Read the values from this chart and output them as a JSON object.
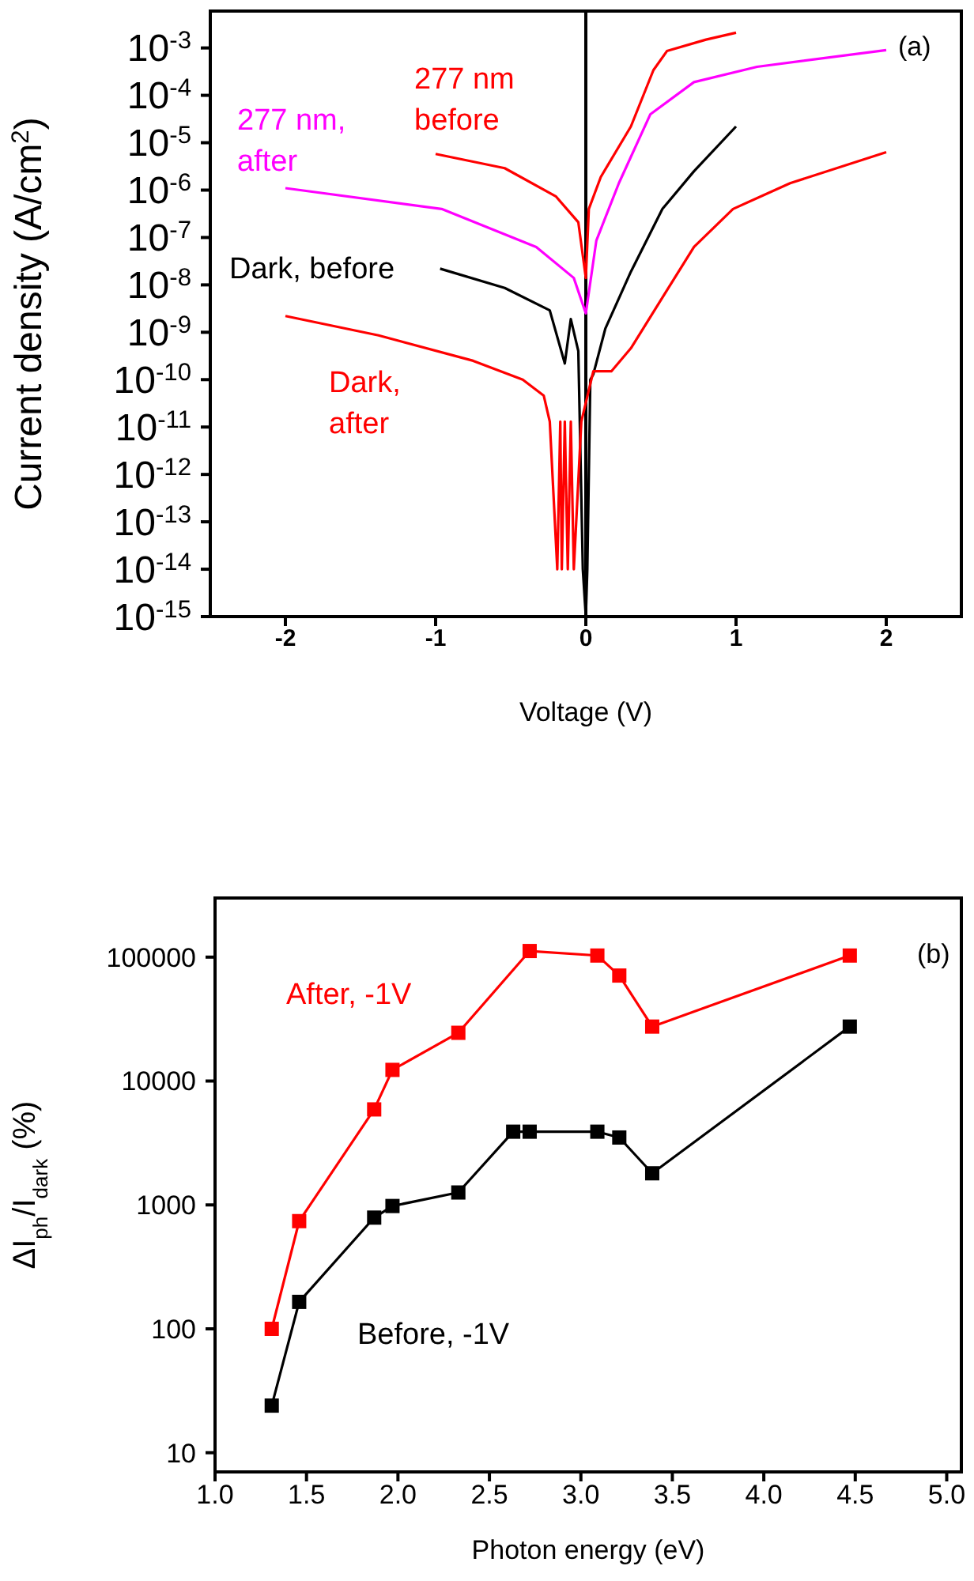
{
  "chart_data": [
    {
      "type": "line",
      "xlabel": "Voltage (V)",
      "ylabel": "Current density (A/cm$^{2}$)",
      "log": "y",
      "marker": "none",
      "line_style": "solid",
      "xlim": [
        -2.5,
        2.5
      ],
      "xticks": [
        -2,
        -1,
        0,
        1,
        2
      ],
      "ylim": [
        1e-15,
        0.006
      ],
      "yticks": [
        {
          "value": 1e-15,
          "label": "10$^{-15}$"
        },
        {
          "value": 1e-14,
          "label": "10$^{-14}$"
        },
        {
          "value": 1e-13,
          "label": "10$^{-13}$"
        },
        {
          "value": 1e-12,
          "label": "10$^{-12}$"
        },
        {
          "value": 1e-11,
          "label": "10$^{-11}$"
        },
        {
          "value": 1e-10,
          "label": "10$^{-10}$"
        },
        {
          "value": 1e-09,
          "label": "10$^{-9}$"
        },
        {
          "value": 1e-08,
          "label": "10$^{-8}$"
        },
        {
          "value": 1e-07,
          "label": "10$^{-7}$"
        },
        {
          "value": 1e-06,
          "label": "10$^{-6}$"
        },
        {
          "value": 1e-05,
          "label": "10$^{-5}$"
        },
        {
          "value": 0.0001,
          "label": "10$^{-4}$"
        },
        {
          "value": 0.001,
          "label": "10$^{-3}$"
        }
      ],
      "ref_lines": [
        {
          "axis": "x",
          "value": 0,
          "color": "#000000"
        }
      ],
      "annotations": [
        "(a)"
      ],
      "series": [
        {
          "name": "277 nm before",
          "color": "#ff0000",
          "x": [
            -1.0,
            -0.54,
            -0.2,
            -0.05,
            0,
            0.02,
            0.1,
            0.3,
            0.45,
            0.54,
            0.8,
            1.0
          ],
          "values": [
            5.8e-06,
            2.9e-06,
            7.4e-07,
            2.1e-07,
            1.4e-08,
            4e-07,
            1.9e-06,
            2.2e-05,
            0.00034,
            0.00086,
            0.0015,
            0.0021
          ]
        },
        {
          "name": "277 nm, after",
          "color": "#ff00ff",
          "x": [
            -2.0,
            -0.96,
            -0.33,
            -0.08,
            0,
            0.07,
            0.22,
            0.43,
            0.72,
            1.14,
            2.0
          ],
          "values": [
            1.1e-06,
            4e-07,
            6.3e-08,
            1.4e-08,
            2.5e-09,
            8.6e-08,
            1.4e-06,
            4e-05,
            0.00019,
            0.0004,
            0.0009
          ]
        },
        {
          "name": "Dark, before",
          "color": "#000000",
          "x": [
            -0.97,
            -0.54,
            -0.24,
            -0.14,
            -0.1,
            -0.05,
            -0.02,
            0,
            0.01,
            0.03,
            0.05,
            0.13,
            0.3,
            0.51,
            0.72,
            1.0
          ],
          "values": [
            2.2e-08,
            8.6e-09,
            2.9e-09,
            2.2e-10,
            1.9e-09,
            4e-10,
            1e-14,
            1e-15,
            1e-14,
            1e-10,
            1.3e-10,
            1.2e-09,
            1.9e-08,
            4e-07,
            2.5e-06,
            2.2e-05
          ]
        },
        {
          "name": "Dark, after",
          "color": "#ff0000",
          "x": [
            -2.0,
            -1.38,
            -0.75,
            -0.42,
            -0.28,
            -0.24,
            -0.19,
            -0.17,
            -0.16,
            -0.14,
            -0.12,
            -0.1,
            -0.08,
            -0.03,
            0.05,
            0.17,
            0.3,
            0.51,
            0.72,
            0.98,
            1.36,
            2.0
          ],
          "values": [
            2.2e-09,
            8.6e-10,
            2.5e-10,
            1e-10,
            4.6e-11,
            1.3e-11,
            1e-14,
            1.3e-11,
            1e-14,
            1.3e-11,
            1e-14,
            1.3e-11,
            1e-14,
            1.3e-11,
            1.5e-10,
            1.5e-10,
            4.6e-10,
            5.4e-09,
            6.3e-08,
            4e-07,
            1.4e-06,
            6.3e-06
          ]
        }
      ]
    },
    {
      "type": "line",
      "xlabel": "Photon energy (eV)",
      "ylabel": "ΔI$_{ph}$/I$_{dark}$ (%)",
      "log": "y",
      "marker": "square",
      "line_style": "solid",
      "xlim": [
        1.0,
        5.08
      ],
      "xticks": [
        {
          "value": 1,
          "label": "1.0"
        },
        1.5,
        {
          "value": 2,
          "label": "2.0"
        },
        2.5,
        {
          "value": 3,
          "label": "3.0"
        },
        3.5,
        {
          "value": 4,
          "label": "4.0"
        },
        4.5,
        {
          "value": 5,
          "label": "5.0"
        }
      ],
      "ylim": [
        7,
        300000
      ],
      "yticks": [
        10,
        100,
        1000,
        10000,
        100000
      ],
      "annotations": [
        "(b)"
      ],
      "series": [
        {
          "name": "After, -1V",
          "color": "#ff0000",
          "x": [
            1.31,
            1.46,
            1.87,
            1.97,
            2.33,
            2.72,
            3.09,
            3.21,
            3.39,
            4.47
          ],
          "values": [
            100,
            740,
            5900,
            12300,
            24500,
            112000,
            103000,
            71000,
            27500,
            103000
          ]
        },
        {
          "name": "Before, -1V",
          "color": "#000000",
          "x": [
            1.31,
            1.46,
            1.87,
            1.97,
            2.33,
            2.63,
            2.72,
            3.09,
            3.21,
            3.39,
            4.47
          ],
          "values": [
            24,
            165,
            790,
            980,
            1260,
            3900,
            3900,
            3900,
            3500,
            1800,
            27500
          ]
        }
      ]
    }
  ]
}
